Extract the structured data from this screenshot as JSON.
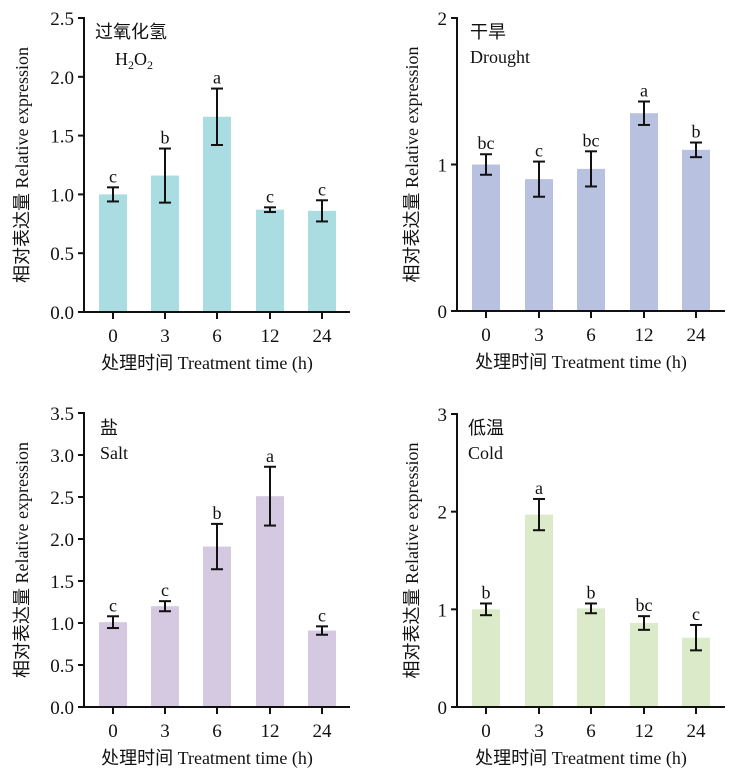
{
  "chart_data": [
    {
      "type": "bar",
      "id": "h2o2",
      "title_cn": "过氧化氢",
      "title_en": "H2O2",
      "title_en_parts": [
        "H",
        "2",
        "O",
        "2"
      ],
      "categories": [
        "0",
        "3",
        "6",
        "12",
        "24"
      ],
      "values": [
        1.0,
        1.16,
        1.66,
        0.87,
        0.86
      ],
      "errors": [
        0.06,
        0.23,
        0.24,
        0.02,
        0.09
      ],
      "significance": [
        "c",
        "b",
        "a",
        "c",
        "c"
      ],
      "ylim": [
        0,
        2.5
      ],
      "yticks": [
        0,
        0.5,
        1.0,
        1.5,
        2.0,
        2.5
      ],
      "ytick_labels": [
        "0.0",
        "0.5",
        "1.0",
        "1.5",
        "2.0",
        "2.5"
      ],
      "xlabel": "处理时间 Treatment time (h)",
      "ylabel": "相对表达量 Relative expression",
      "color": "#aadde2"
    },
    {
      "type": "bar",
      "id": "drought",
      "title_cn": "干旱",
      "title_en": "Drought",
      "categories": [
        "0",
        "3",
        "6",
        "12",
        "24"
      ],
      "values": [
        1.0,
        0.9,
        0.97,
        1.35,
        1.1
      ],
      "errors": [
        0.07,
        0.12,
        0.12,
        0.08,
        0.05
      ],
      "significance": [
        "bc",
        "c",
        "bc",
        "a",
        "b"
      ],
      "ylim": [
        0,
        2
      ],
      "yticks": [
        0,
        1,
        2
      ],
      "ytick_labels": [
        "0",
        "1",
        "2"
      ],
      "xlabel": "处理时间 Treatment time (h)",
      "ylabel": "相对表达量 Relative expression",
      "color": "#b8c2e0"
    },
    {
      "type": "bar",
      "id": "salt",
      "title_cn": "盐",
      "title_en": "Salt",
      "categories": [
        "0",
        "3",
        "6",
        "12",
        "24"
      ],
      "values": [
        1.01,
        1.2,
        1.91,
        2.51,
        0.91
      ],
      "errors": [
        0.07,
        0.06,
        0.27,
        0.35,
        0.05
      ],
      "significance": [
        "c",
        "c",
        "b",
        "a",
        "c"
      ],
      "ylim": [
        0,
        3.5
      ],
      "yticks": [
        0,
        0.5,
        1.0,
        1.5,
        2.0,
        2.5,
        3.0,
        3.5
      ],
      "ytick_labels": [
        "0.0",
        "0.5",
        "1.0",
        "1.5",
        "2.0",
        "2.5",
        "3.0",
        "3.5"
      ],
      "xlabel": "处理时间 Treatment time (h)",
      "ylabel": "相对表达量 Relative expression",
      "color": "#d4c9e0"
    },
    {
      "type": "bar",
      "id": "cold",
      "title_cn": "低温",
      "title_en": "Cold",
      "categories": [
        "0",
        "3",
        "6",
        "12",
        "24"
      ],
      "values": [
        1.0,
        1.97,
        1.01,
        0.86,
        0.71
      ],
      "errors": [
        0.06,
        0.16,
        0.05,
        0.07,
        0.13
      ],
      "significance": [
        "b",
        "a",
        "b",
        "bc",
        "c"
      ],
      "ylim": [
        0,
        3
      ],
      "yticks": [
        0,
        1,
        2,
        3
      ],
      "ytick_labels": [
        "0",
        "1",
        "2",
        "3"
      ],
      "xlabel": "处理时间 Treatment time (h)",
      "ylabel": "相对表达量 Relative expression",
      "color": "#dbeac8"
    }
  ]
}
